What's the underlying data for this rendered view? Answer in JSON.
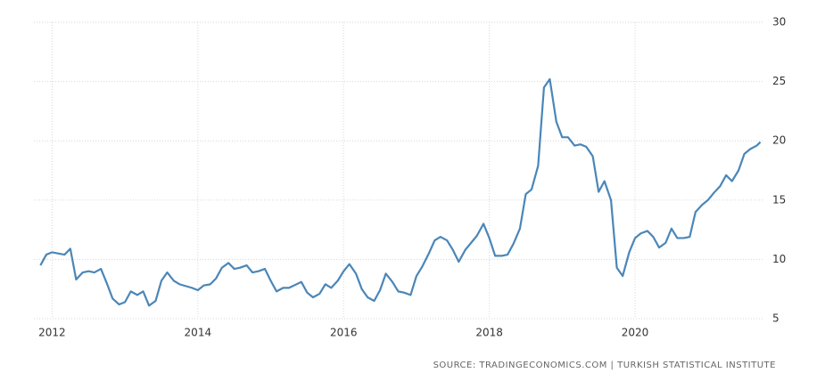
{
  "chart_data": {
    "type": "line",
    "x": [
      2011.84,
      2011.92,
      2012.0,
      2012.17,
      2012.25,
      2012.33,
      2012.42,
      2012.5,
      2012.58,
      2012.67,
      2012.75,
      2012.83,
      2012.92,
      2013.0,
      2013.08,
      2013.17,
      2013.25,
      2013.33,
      2013.42,
      2013.5,
      2013.58,
      2013.67,
      2013.75,
      2013.92,
      2014.0,
      2014.08,
      2014.17,
      2014.25,
      2014.33,
      2014.42,
      2014.5,
      2014.58,
      2014.67,
      2014.75,
      2014.83,
      2014.92,
      2015.0,
      2015.08,
      2015.17,
      2015.25,
      2015.42,
      2015.5,
      2015.58,
      2015.67,
      2015.75,
      2015.83,
      2015.92,
      2016.0,
      2016.08,
      2016.17,
      2016.25,
      2016.33,
      2016.42,
      2016.5,
      2016.58,
      2016.67,
      2016.75,
      2016.83,
      2016.92,
      2017.0,
      2017.08,
      2017.17,
      2017.25,
      2017.33,
      2017.42,
      2017.5,
      2017.58,
      2017.67,
      2017.75,
      2017.83,
      2017.92,
      2018.0,
      2018.08,
      2018.17,
      2018.25,
      2018.33,
      2018.42,
      2018.5,
      2018.58,
      2018.67,
      2018.75,
      2018.83,
      2018.92,
      2019.0,
      2019.08,
      2019.17,
      2019.25,
      2019.33,
      2019.42,
      2019.5,
      2019.58,
      2019.67,
      2019.75,
      2019.83,
      2019.92,
      2020.0,
      2020.08,
      2020.17,
      2020.25,
      2020.33,
      2020.42,
      2020.5,
      2020.58,
      2020.67,
      2020.75,
      2020.83,
      2020.92,
      2021.0,
      2021.08,
      2021.17,
      2021.25,
      2021.33,
      2021.42,
      2021.5,
      2021.58,
      2021.67,
      2021.72
    ],
    "series": [
      {
        "color": "#4a86b8",
        "values": [
          9.5,
          10.4,
          10.6,
          10.4,
          10.9,
          8.3,
          8.9,
          9.0,
          8.9,
          9.2,
          8.0,
          6.7,
          6.2,
          6.4,
          7.3,
          7.0,
          7.3,
          6.1,
          6.5,
          8.2,
          8.9,
          8.2,
          7.9,
          7.6,
          7.4,
          7.8,
          7.9,
          8.4,
          9.3,
          9.7,
          9.2,
          9.3,
          9.5,
          8.9,
          9.0,
          9.2,
          8.2,
          7.3,
          7.6,
          7.6,
          8.1,
          7.2,
          6.8,
          7.1,
          7.9,
          7.6,
          8.2,
          9.0,
          9.6,
          8.8,
          7.5,
          6.8,
          6.5,
          7.4,
          8.8,
          8.1,
          7.3,
          7.2,
          7.0,
          8.6,
          9.4,
          10.5,
          11.6,
          11.9,
          11.6,
          10.8,
          9.8,
          10.8,
          11.4,
          12.0,
          13.0,
          11.8,
          10.3,
          10.3,
          10.4,
          11.3,
          12.6,
          15.5,
          15.9,
          17.9,
          24.5,
          25.2,
          21.6,
          20.3,
          20.3,
          19.6,
          19.7,
          19.5,
          18.7,
          15.7,
          16.6,
          15.0,
          9.3,
          8.6,
          10.6,
          11.8,
          12.2,
          12.4,
          11.9,
          11.0,
          11.4,
          12.6,
          11.8,
          11.8,
          11.9,
          14.0,
          14.6,
          15.0,
          15.6,
          16.2,
          17.1,
          16.6,
          17.5,
          18.9,
          19.3,
          19.6,
          19.9
        ]
      }
    ],
    "xlim": [
      2011.75,
      2021.75
    ],
    "xticks": [
      2012,
      2014,
      2016,
      2018,
      2020
    ],
    "ylim": [
      5,
      30
    ],
    "yticks": [
      5,
      10,
      15,
      20,
      25,
      30
    ],
    "grid": true,
    "source": "SOURCE: TRADINGECONOMICS.COM | TURKISH STATISTICAL INSTITUTE"
  }
}
